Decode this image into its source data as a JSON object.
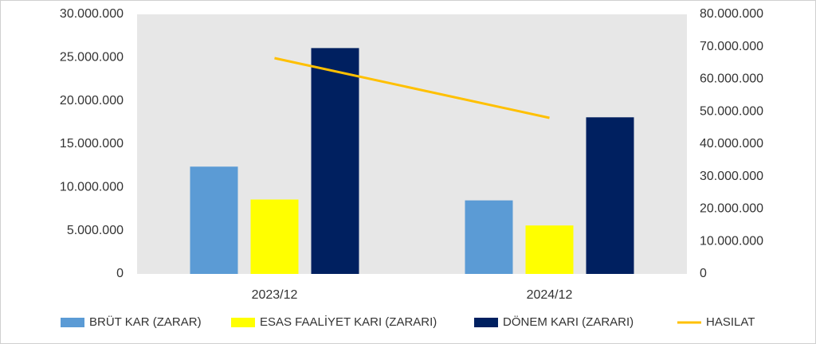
{
  "chart_data": {
    "type": "bar",
    "categories": [
      "2023/12",
      "2024/12"
    ],
    "series": [
      {
        "name": "BRÜT KAR (ZARAR)",
        "color": "#5b9bd5",
        "values": [
          12400000,
          8500000
        ]
      },
      {
        "name": "ESAS FAALİYET KARI (ZARARI)",
        "color": "#ffff00",
        "values": [
          8600000,
          5600000
        ]
      },
      {
        "name": "DÖNEM KARI (ZARARI)",
        "color": "#002060",
        "values": [
          26100000,
          18100000
        ]
      },
      {
        "name": "HASILAT",
        "color": "#ffc000",
        "type": "line",
        "axis": "y2",
        "values": [
          66500000,
          48100000
        ]
      }
    ],
    "ylim": [
      0,
      30000000
    ],
    "yticks": [
      0,
      {
        "value": 5000000,
        "label": "5.000.000"
      },
      {
        "value": 10000000,
        "label": "10.000.000"
      },
      {
        "value": 15000000,
        "label": "15.000.000"
      },
      {
        "value": 20000000,
        "label": "20.000.000"
      },
      {
        "value": 25000000,
        "label": "25.000.000"
      },
      {
        "value": 30000000,
        "label": "30.000.000"
      }
    ],
    "y2lim": [
      0,
      80000000
    ],
    "y2ticks": [
      0,
      {
        "value": 10000000,
        "label": "10.000.000"
      },
      {
        "value": 20000000,
        "label": "20.000.000"
      },
      {
        "value": 30000000,
        "label": "30.000.000"
      },
      {
        "value": 40000000,
        "label": "40.000.000"
      },
      {
        "value": 50000000,
        "label": "50.000.000"
      },
      {
        "value": 60000000,
        "label": "60.000.000"
      },
      {
        "value": 70000000,
        "label": "70.000.000"
      },
      {
        "value": 80000000,
        "label": "80.000.000"
      }
    ],
    "legend": "bottom"
  }
}
